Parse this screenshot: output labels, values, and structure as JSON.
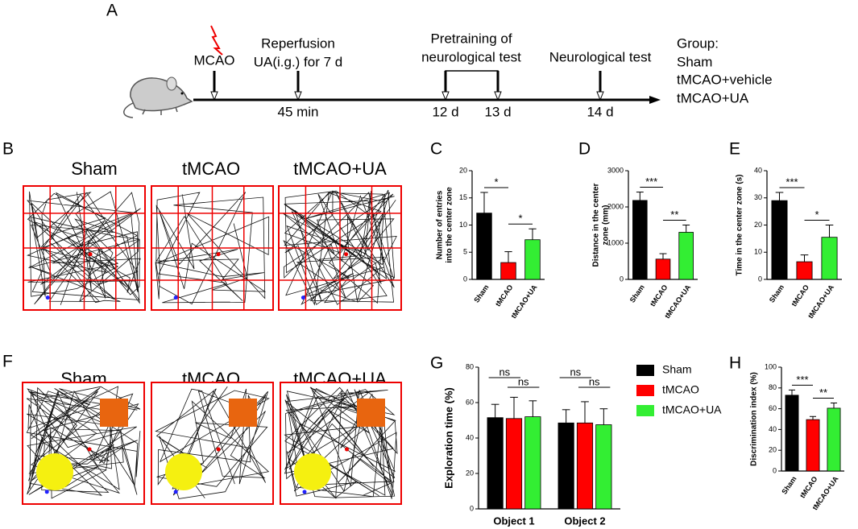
{
  "panels": [
    "A",
    "B",
    "C",
    "D",
    "E",
    "F",
    "G",
    "H"
  ],
  "timeline": {
    "mcao": "MCAO",
    "reperfusion": "Reperfusion",
    "ua": "UA(i.g.) for 7 d",
    "pretraining": [
      "Pretraining of",
      "neurological test"
    ],
    "neuro": "Neurological test",
    "times": [
      "45 min",
      "12 d",
      "13 d",
      "14 d"
    ],
    "group_title": "Group:",
    "groups": [
      "Sham",
      "tMCAO+vehicle",
      "tMCAO+UA"
    ]
  },
  "tracks": {
    "B": [
      "Sham",
      "tMCAO",
      "tMCAO+UA"
    ],
    "F": [
      "Sham",
      "tMCAO",
      "tMCAO+UA"
    ]
  },
  "chart_data": [
    {
      "type": "bar",
      "ylabel": [
        "Number of entries",
        "into the center zone"
      ],
      "categories": [
        "Sham",
        "tMCAO",
        "tMCAO+UA"
      ],
      "values": [
        12.2,
        3.1,
        7.3
      ],
      "errors": [
        3.8,
        2.0,
        2.0
      ],
      "colors": [
        "#000000",
        "#ff0000",
        "#33ee33"
      ],
      "ylim": [
        0,
        20
      ],
      "yticks": [
        0,
        5,
        10,
        15,
        20
      ],
      "significance": [
        "*",
        "*"
      ]
    },
    {
      "type": "bar",
      "ylabel": [
        "Distance in the center",
        "zone (mm)"
      ],
      "categories": [
        "Sham",
        "tMCAO",
        "tMCAO+UA"
      ],
      "values": [
        2180,
        560,
        1300
      ],
      "errors": [
        230,
        150,
        200
      ],
      "colors": [
        "#000000",
        "#ff0000",
        "#33ee33"
      ],
      "ylim": [
        0,
        3000
      ],
      "yticks": [
        0,
        1000,
        2000,
        3000
      ],
      "significance": [
        "***",
        "**"
      ]
    },
    {
      "type": "bar",
      "ylabel": [
        "Time in the center zone (s)"
      ],
      "categories": [
        "Sham",
        "tMCAO",
        "tMCAO+UA"
      ],
      "values": [
        29,
        6.5,
        15.5
      ],
      "errors": [
        3,
        2.5,
        4.5
      ],
      "colors": [
        "#000000",
        "#ff0000",
        "#33ee33"
      ],
      "ylim": [
        0,
        40
      ],
      "yticks": [
        0,
        10,
        20,
        30,
        40
      ],
      "significance": [
        "***",
        "*"
      ]
    },
    {
      "type": "grouped_bar",
      "ylabel": [
        "Exploration time (%)"
      ],
      "categories": [
        "Object 1",
        "Object 2"
      ],
      "series": [
        {
          "name": "Sham",
          "color": "#000000",
          "values": [
            51.5,
            48.5
          ],
          "errors": [
            7.5,
            7.5
          ]
        },
        {
          "name": "tMCAO",
          "color": "#ff0000",
          "values": [
            51,
            48.5
          ],
          "errors": [
            12,
            12
          ]
        },
        {
          "name": "tMCAO+UA",
          "color": "#33ee33",
          "values": [
            52,
            47.5
          ],
          "errors": [
            9,
            9
          ]
        }
      ],
      "ylim": [
        0,
        80
      ],
      "yticks": [
        0,
        20,
        40,
        60,
        80
      ],
      "significance": [
        "ns",
        "ns",
        "ns",
        "ns"
      ]
    },
    {
      "type": "bar",
      "ylabel": [
        "Discrimination index (%)"
      ],
      "categories": [
        "Sham",
        "tMCAO",
        "tMCAO+UA"
      ],
      "values": [
        73,
        49.5,
        60.5
      ],
      "errors": [
        5,
        3,
        5
      ],
      "colors": [
        "#000000",
        "#ff0000",
        "#33ee33"
      ],
      "ylim": [
        0,
        100
      ],
      "yticks": [
        0,
        20,
        40,
        60,
        80,
        100
      ],
      "significance": [
        "***",
        "**"
      ]
    }
  ]
}
